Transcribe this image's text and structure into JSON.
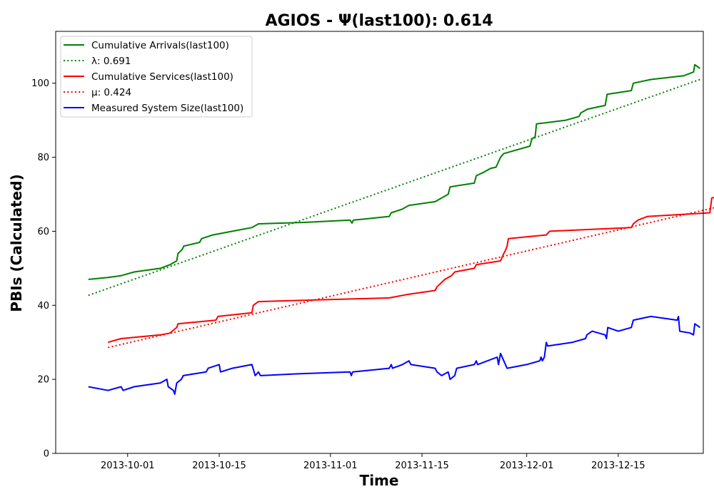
{
  "chart_data": {
    "type": "line",
    "title": "AGIOS -  Ψ(last100): 0.614",
    "xlabel": "Time",
    "ylabel": "PBIs (Calculated)",
    "xlim": [
      "2013-09-20",
      "2013-12-28"
    ],
    "ylim": [
      0,
      114
    ],
    "x_ticks": [
      "2013-10-01",
      "2013-10-15",
      "2013-11-01",
      "2013-11-15",
      "2013-12-01",
      "2013-12-15"
    ],
    "y_ticks": [
      0,
      20,
      40,
      60,
      80,
      100
    ],
    "grid": false,
    "legend_position": "top-left",
    "series": [
      {
        "name": "Cumulative Arrivals(last100)",
        "style": "solid",
        "color": "#008000",
        "points": [
          [
            "2013-09-25",
            47
          ],
          [
            "2013-09-28",
            47.5
          ],
          [
            "2013-09-30",
            48
          ],
          [
            "2013-10-02",
            49
          ],
          [
            "2013-10-06",
            50
          ],
          [
            "2013-10-07.5",
            51
          ],
          [
            "2013-10-08.5",
            52
          ],
          [
            "2013-10-08.7",
            54
          ],
          [
            "2013-10-09.3",
            55
          ],
          [
            "2013-10-09.6",
            56
          ],
          [
            "2013-10-12",
            57
          ],
          [
            "2013-10-12.3",
            58
          ],
          [
            "2013-10-14",
            59
          ],
          [
            "2013-10-17",
            60
          ],
          [
            "2013-10-20",
            61
          ],
          [
            "2013-10-21",
            62
          ],
          [
            "2013-10-28",
            62.4
          ],
          [
            "2013-11-04",
            63
          ],
          [
            "2013-11-04.3",
            62.2
          ],
          [
            "2013-11-04.5",
            63
          ],
          [
            "2013-11-10",
            64
          ],
          [
            "2013-11-10.3",
            65
          ],
          [
            "2013-11-12",
            66
          ],
          [
            "2013-11-13",
            67
          ],
          [
            "2013-11-17",
            68
          ],
          [
            "2013-11-18",
            69
          ],
          [
            "2013-11-19",
            70
          ],
          [
            "2013-11-19.3",
            72
          ],
          [
            "2013-11-23",
            73
          ],
          [
            "2013-11-23.3",
            75
          ],
          [
            "2013-11-24.5",
            76
          ],
          [
            "2013-11-25.5",
            77
          ],
          [
            "2013-11-26.3",
            77.3
          ],
          [
            "2013-11-26.5",
            78
          ],
          [
            "2013-11-27",
            80
          ],
          [
            "2013-11-27.5",
            81
          ],
          [
            "2013-12-01.5",
            83
          ],
          [
            "2013-12-01.8",
            85
          ],
          [
            "2013-12-02.3",
            85.5
          ],
          [
            "2013-12-02.5",
            89
          ],
          [
            "2013-12-07",
            90
          ],
          [
            "2013-12-09",
            91
          ],
          [
            "2013-12-09.3",
            92
          ],
          [
            "2013-12-10.3",
            93
          ],
          [
            "2013-12-13",
            94
          ],
          [
            "2013-12-13.3",
            97
          ],
          [
            "2013-12-17",
            98
          ],
          [
            "2013-12-17.3",
            100
          ],
          [
            "2013-12-20",
            101
          ],
          [
            "2013-12-25",
            102
          ],
          [
            "2013-12-26.5",
            103
          ],
          [
            "2013-12-26.7",
            105
          ],
          [
            "2013-12-27.5",
            104
          ]
        ]
      },
      {
        "name": "λ: 0.691",
        "style": "dotted",
        "color": "#008000",
        "points": [
          [
            "2013-09-25",
            42.7
          ],
          [
            "2013-12-27.5",
            101
          ]
        ]
      },
      {
        "name": "Cumulative Services(last100)",
        "style": "solid",
        "color": "#ff0000",
        "points": [
          [
            "2013-09-28",
            30
          ],
          [
            "2013-09-30",
            31
          ],
          [
            "2013-10-06",
            32
          ],
          [
            "2013-10-07.5",
            32.5
          ],
          [
            "2013-10-07.8",
            33
          ],
          [
            "2013-10-08.5",
            34
          ],
          [
            "2013-10-08.7",
            35
          ],
          [
            "2013-10-14.5",
            36
          ],
          [
            "2013-10-14.8",
            37
          ],
          [
            "2013-10-20",
            38
          ],
          [
            "2013-10-20.2",
            40
          ],
          [
            "2013-10-21",
            41
          ],
          [
            "2013-11-10",
            42
          ],
          [
            "2013-11-13",
            43
          ],
          [
            "2013-11-17",
            44
          ],
          [
            "2013-11-17.3",
            45
          ],
          [
            "2013-11-18.5",
            47
          ],
          [
            "2013-11-19.5",
            48
          ],
          [
            "2013-11-20",
            49
          ],
          [
            "2013-11-23",
            50
          ],
          [
            "2013-11-23.3",
            51
          ],
          [
            "2013-11-27",
            52
          ],
          [
            "2013-11-27.5",
            54
          ],
          [
            "2013-11-27.8",
            55
          ],
          [
            "2013-11-28",
            56
          ],
          [
            "2013-11-28.2",
            58
          ],
          [
            "2013-12-04",
            59
          ],
          [
            "2013-12-04.5",
            60
          ],
          [
            "2013-12-17",
            61
          ],
          [
            "2013-12-17.3",
            62
          ],
          [
            "2013-12-18",
            63
          ],
          [
            "2013-12-19.5",
            64
          ],
          [
            "2013-12-29",
            65
          ],
          [
            "2013-12-29.3",
            69
          ],
          [
            "2013-12-32",
            70
          ]
        ]
      },
      {
        "name": "μ: 0.424",
        "style": "dotted",
        "color": "#ff0000",
        "points": [
          [
            "2013-09-28",
            28.6
          ],
          [
            "2013-12-32",
            67.3
          ]
        ]
      },
      {
        "name": "Measured System Size(last100)",
        "style": "solid",
        "color": "#0000ff",
        "points": [
          [
            "2013-09-25",
            18
          ],
          [
            "2013-09-28",
            17
          ],
          [
            "2013-09-30",
            18
          ],
          [
            "2013-09-30.3",
            17
          ],
          [
            "2013-10-02",
            18
          ],
          [
            "2013-10-06",
            19
          ],
          [
            "2013-10-07",
            20
          ],
          [
            "2013-10-07.2",
            18
          ],
          [
            "2013-10-08",
            17
          ],
          [
            "2013-10-08.2",
            16
          ],
          [
            "2013-10-08.5",
            19
          ],
          [
            "2013-10-09.2",
            20
          ],
          [
            "2013-10-09.5",
            21
          ],
          [
            "2013-10-13",
            22
          ],
          [
            "2013-10-13.3",
            23
          ],
          [
            "2013-10-15",
            24
          ],
          [
            "2013-10-15.2",
            22
          ],
          [
            "2013-10-17",
            23
          ],
          [
            "2013-10-20",
            24
          ],
          [
            "2013-10-20.5",
            21
          ],
          [
            "2013-10-21",
            22
          ],
          [
            "2013-10-21.3",
            21
          ],
          [
            "2013-10-27",
            21.5
          ],
          [
            "2013-11-04",
            22
          ],
          [
            "2013-11-04.2",
            21
          ],
          [
            "2013-11-04.4",
            22
          ],
          [
            "2013-11-10",
            23
          ],
          [
            "2013-11-10.3",
            24
          ],
          [
            "2013-11-10.5",
            23
          ],
          [
            "2013-11-12",
            24
          ],
          [
            "2013-11-13",
            25
          ],
          [
            "2013-11-13.3",
            24
          ],
          [
            "2013-11-17",
            23
          ],
          [
            "2013-11-17.3",
            22
          ],
          [
            "2013-11-18",
            21
          ],
          [
            "2013-11-19",
            22
          ],
          [
            "2013-11-19.3",
            20
          ],
          [
            "2013-11-20",
            21
          ],
          [
            "2013-11-20.3",
            23
          ],
          [
            "2013-11-23",
            24
          ],
          [
            "2013-11-23.3",
            25
          ],
          [
            "2013-11-23.5",
            24
          ],
          [
            "2013-11-25",
            25
          ],
          [
            "2013-11-26.5",
            26
          ],
          [
            "2013-11-26.7",
            24
          ],
          [
            "2013-11-27",
            27
          ],
          [
            "2013-11-27.5",
            25
          ],
          [
            "2013-11-28",
            23
          ],
          [
            "2013-12-01",
            24
          ],
          [
            "2013-12-03",
            25
          ],
          [
            "2013-12-03.2",
            26
          ],
          [
            "2013-12-03.4",
            25
          ],
          [
            "2013-12-03.7",
            26
          ],
          [
            "2013-12-04",
            30
          ],
          [
            "2013-12-04.2",
            29
          ],
          [
            "2013-12-08",
            30
          ],
          [
            "2013-12-10",
            31
          ],
          [
            "2013-12-10.2",
            32
          ],
          [
            "2013-12-11",
            33
          ],
          [
            "2013-12-13",
            32
          ],
          [
            "2013-12-13.2",
            31
          ],
          [
            "2013-12-13.4",
            34
          ],
          [
            "2013-12-15",
            33
          ],
          [
            "2013-12-17",
            34
          ],
          [
            "2013-12-17.3",
            36
          ],
          [
            "2013-12-20",
            37
          ],
          [
            "2013-12-24",
            36
          ],
          [
            "2013-12-24.2",
            37
          ],
          [
            "2013-12-24.4",
            33
          ],
          [
            "2013-12-26",
            32.5
          ],
          [
            "2013-12-26.5",
            32
          ],
          [
            "2013-12-26.7",
            35
          ],
          [
            "2013-12-27.5",
            34
          ]
        ]
      }
    ]
  }
}
